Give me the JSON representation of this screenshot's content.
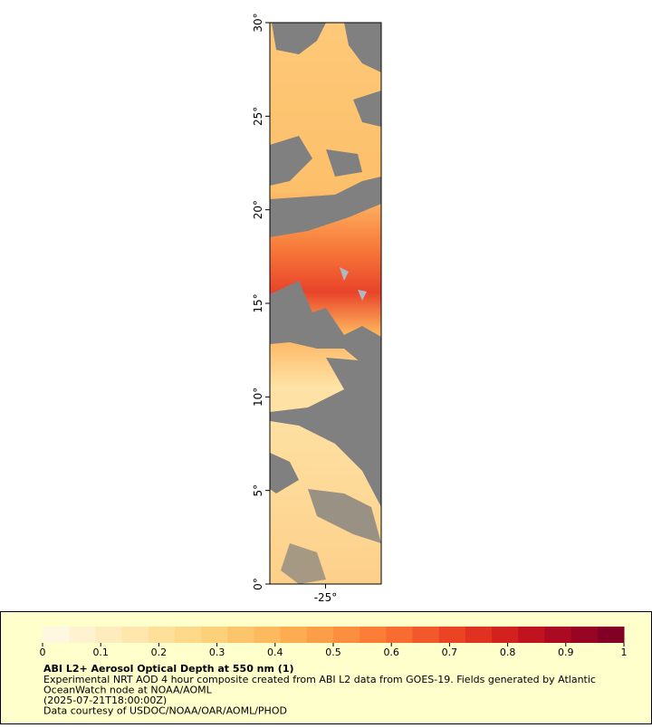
{
  "map": {
    "xlim": [
      -28,
      -22
    ],
    "ylim": [
      0,
      30
    ],
    "xticks": [
      {
        "value": -25,
        "label": "-25°"
      }
    ],
    "yticks": [
      {
        "value": 0,
        "label": "0°"
      },
      {
        "value": 5,
        "label": "5°"
      },
      {
        "value": 10,
        "label": "10°"
      },
      {
        "value": 15,
        "label": "15°"
      },
      {
        "value": 20,
        "label": "20°"
      },
      {
        "value": 25,
        "label": "25°"
      },
      {
        "value": 30,
        "label": "30°"
      }
    ]
  },
  "colorbar": {
    "lim": [
      0,
      1
    ],
    "ticks": [
      0,
      0.1,
      0.2,
      0.3,
      0.4,
      0.5,
      0.6,
      0.7,
      0.8,
      0.9,
      1
    ],
    "colors": [
      "#fff8e0",
      "#fff2d0",
      "#ffecbe",
      "#fee6ac",
      "#fee09a",
      "#fed98a",
      "#fdd07a",
      "#fdc56b",
      "#fdb95e",
      "#fdac52",
      "#fc9d48",
      "#fc8e3f",
      "#fb7d38",
      "#f86b31",
      "#f2582b",
      "#ea4425",
      "#e13120",
      "#d2211f",
      "#c0131f",
      "#ac0a22",
      "#980424",
      "#820026"
    ]
  },
  "caption": {
    "title": "ABI L2+ Aerosol Optical Depth at 550 nm (1)",
    "lines": [
      "Experimental NRT AOD 4 hour composite created from ABI L2 data from GOES-19. Fields generated by Atlantic",
      "OceanWatch node at NOAA/AOML",
      "(2025-07-21T18:00:00Z)",
      "Data courtesy of USDOC/NOAA/OAR/AOML/PHOD"
    ]
  }
}
